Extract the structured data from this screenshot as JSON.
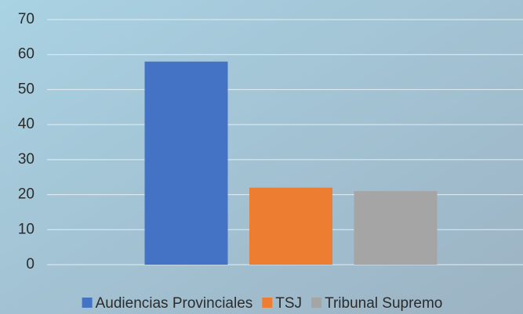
{
  "chart_data": {
    "type": "bar",
    "categories": [
      null
    ],
    "series": [
      {
        "name": "Audiencias Provinciales",
        "color": "#4472c4",
        "values": [
          58
        ]
      },
      {
        "name": "TSJ",
        "color": "#ed7d31",
        "values": [
          22
        ]
      },
      {
        "name": "Tribunal Supremo",
        "color": "#a5a5a5",
        "values": [
          21
        ]
      }
    ],
    "ylim": [
      0,
      70
    ],
    "yticks": [
      0,
      10,
      20,
      30,
      40,
      50,
      60,
      70
    ],
    "grid": true,
    "legend": "bottom"
  }
}
